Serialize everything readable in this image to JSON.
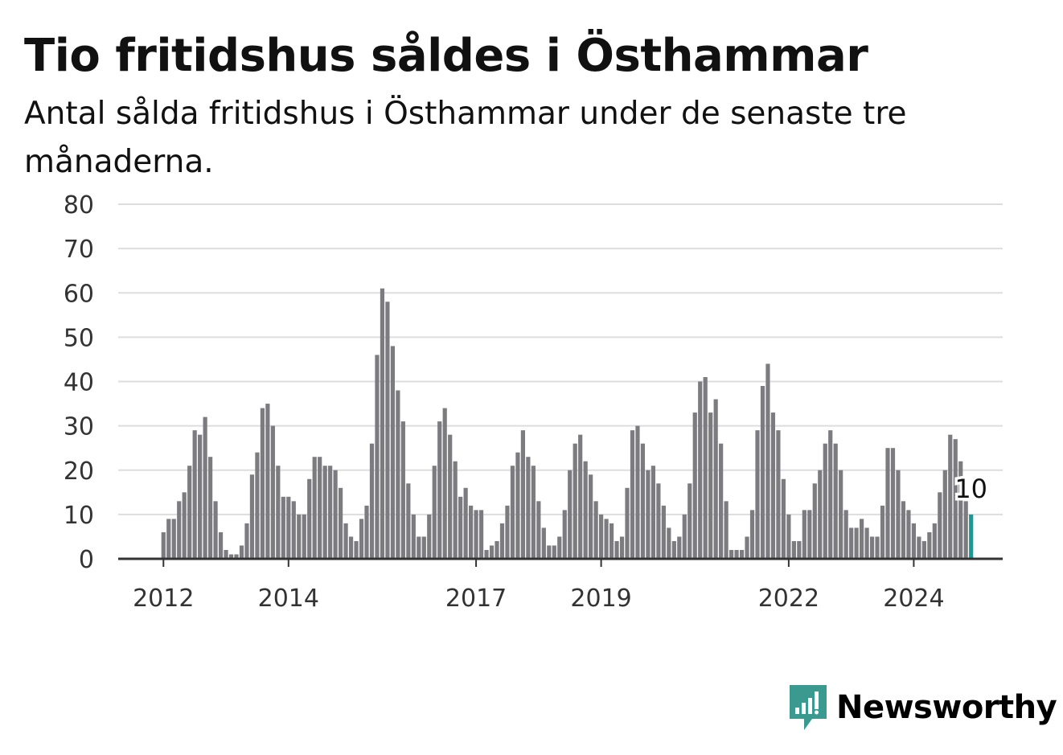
{
  "title": "Tio fritidshus såldes i Östhammar",
  "subtitle": "Antal sålda fritidshus i Östhammar under de senaste tre månaderna.",
  "logo": {
    "text": "Newsworthy",
    "color": "#3a9a90",
    "icon": "chart-bubble-icon"
  },
  "colors": {
    "bar": "#7c7b80",
    "highlight": "#1a9a94",
    "grid": "#dddddd",
    "axis": "#333333",
    "text": "#333333"
  },
  "chart_data": {
    "type": "bar",
    "ylim": [
      0,
      80
    ],
    "yticks": [
      "0",
      "10",
      "20",
      "30",
      "40",
      "50",
      "60",
      "70",
      "80"
    ],
    "xticks": [
      {
        "label": "2012",
        "month": "2012-01"
      },
      {
        "label": "2014",
        "month": "2014-01"
      },
      {
        "label": "2017",
        "month": "2017-01"
      },
      {
        "label": "2019",
        "month": "2019-01"
      },
      {
        "label": "2022",
        "month": "2022-01"
      },
      {
        "label": "2024",
        "month": "2024-01"
      }
    ],
    "start_month": "2011-12",
    "values": [
      0,
      6,
      9,
      9,
      13,
      15,
      21,
      29,
      28,
      32,
      23,
      13,
      6,
      2,
      1,
      1,
      3,
      8,
      19,
      24,
      34,
      35,
      30,
      21,
      14,
      14,
      13,
      10,
      10,
      18,
      23,
      23,
      21,
      21,
      20,
      16,
      8,
      5,
      4,
      9,
      12,
      26,
      46,
      61,
      58,
      48,
      38,
      31,
      17,
      10,
      5,
      5,
      10,
      21,
      31,
      34,
      28,
      22,
      14,
      16,
      12,
      11,
      11,
      2,
      3,
      4,
      8,
      12,
      21,
      24,
      29,
      23,
      21,
      13,
      7,
      3,
      3,
      5,
      11,
      20,
      26,
      28,
      22,
      19,
      13,
      10,
      9,
      8,
      4,
      5,
      16,
      29,
      30,
      26,
      20,
      21,
      17,
      12,
      7,
      4,
      5,
      10,
      17,
      33,
      40,
      41,
      33,
      36,
      26,
      13,
      2,
      2,
      2,
      5,
      11,
      29,
      39,
      44,
      33,
      29,
      18,
      10,
      4,
      4,
      11,
      11,
      17,
      20,
      26,
      29,
      26,
      20,
      11,
      7,
      7,
      9,
      7,
      5,
      5,
      12,
      25,
      25,
      20,
      13,
      11,
      8,
      5,
      4,
      6,
      8,
      15,
      20,
      28,
      27,
      22,
      13,
      10
    ],
    "highlight_last": true,
    "annotation": "10"
  }
}
